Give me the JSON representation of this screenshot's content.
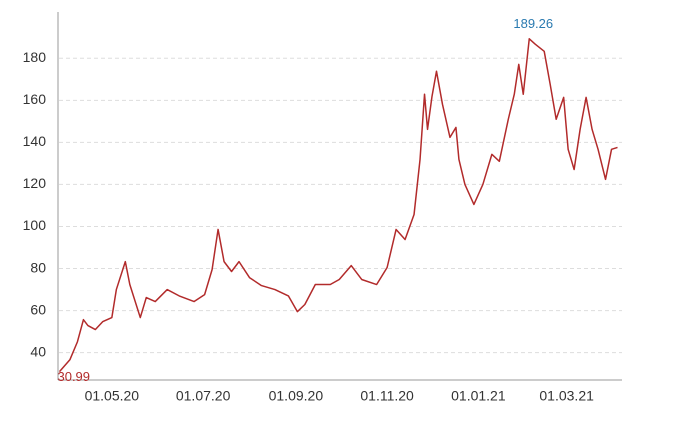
{
  "chart_data": {
    "type": "line",
    "color": "#b22b2b",
    "grid": true,
    "x": [
      "27.03.20",
      "03.04.20",
      "08.04.20",
      "12.04.20",
      "15.04.20",
      "20.04.20",
      "25.04.20",
      "01.05.20",
      "04.05.20",
      "10.05.20",
      "13.05.20",
      "20.05.20",
      "24.05.20",
      "30.05.20",
      "07.06.20",
      "15.06.20",
      "25.06.20",
      "02.07.20",
      "07.07.20",
      "11.07.20",
      "15.07.20",
      "20.07.20",
      "25.07.20",
      "01.08.20",
      "09.08.20",
      "18.08.20",
      "27.08.20",
      "02.09.20",
      "07.09.20",
      "14.09.20",
      "24.09.20",
      "30.09.20",
      "08.10.20",
      "15.10.20",
      "25.10.20",
      "01.11.20",
      "07.11.20",
      "13.11.20",
      "19.11.20",
      "23.11.20",
      "26.11.20",
      "28.11.20",
      "01.12.20",
      "04.12.20",
      "08.12.20",
      "13.12.20",
      "17.12.20",
      "19.12.20",
      "23.12.20",
      "29.12.20",
      "04.01.21",
      "10.01.21",
      "15.01.21",
      "21.01.21",
      "25.01.21",
      "28.01.21",
      "31.01.21",
      "04.02.21",
      "08.02.21",
      "14.02.21",
      "18.02.21",
      "22.02.21",
      "27.02.21",
      "02.03.21",
      "06.03.21",
      "10.03.21",
      "14.03.21",
      "18.03.21",
      "22.03.21",
      "27.03.21",
      "31.03.21",
      "04.04.21"
    ],
    "values": [
      30.99,
      36.7,
      45.2,
      55.7,
      52.9,
      51.0,
      54.8,
      56.7,
      70.0,
      83.3,
      72.4,
      56.7,
      66.2,
      64.3,
      70.0,
      67.0,
      64.3,
      67.6,
      79.5,
      98.6,
      83.3,
      78.6,
      83.3,
      75.7,
      71.9,
      70.0,
      67.0,
      59.5,
      62.9,
      72.4,
      72.4,
      74.8,
      81.4,
      74.8,
      72.4,
      80.5,
      98.6,
      93.8,
      105.7,
      131.9,
      162.9,
      146.2,
      161.9,
      173.8,
      158.1,
      142.4,
      147.1,
      131.9,
      120.0,
      110.5,
      120.0,
      134.3,
      131.0,
      151.0,
      162.9,
      177.1,
      162.9,
      189.26,
      186.7,
      183.3,
      167.6,
      151.0,
      161.4,
      136.7,
      127.1,
      146.2,
      161.4,
      146.2,
      136.7,
      122.4,
      136.7,
      137.6
    ],
    "xlim": [
      "26.03.20",
      "07.04.21"
    ],
    "xticks": [
      "01.05.20",
      "01.07.20",
      "01.09.20",
      "01.11.20",
      "01.01.21",
      "01.03.21"
    ],
    "ylim": [
      27,
      202
    ],
    "yticks": [
      40,
      60,
      80,
      100,
      120,
      140,
      160,
      180
    ]
  }
}
